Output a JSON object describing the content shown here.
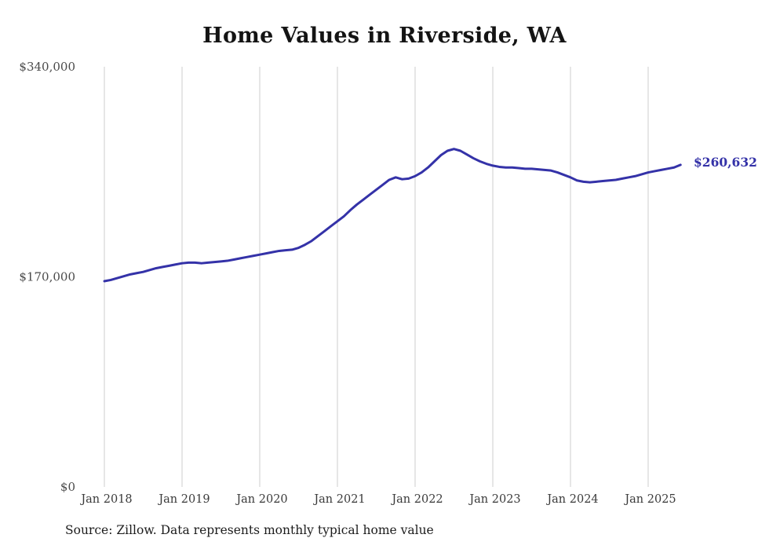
{
  "chart_data": {
    "type": "line",
    "title": "Home Values in Riverside, WA",
    "series_name": "Monthly typical home value",
    "unit": "USD",
    "x_start": "2018-01",
    "x_end": "2025-06",
    "x_tick_labels": [
      "Jan 2018",
      "Jan 2019",
      "Jan 2020",
      "Jan 2021",
      "Jan 2022",
      "Jan 2023",
      "Jan 2024",
      "Jan 2025"
    ],
    "y_tick_labels": [
      "$0",
      "$170,000",
      "$340,000"
    ],
    "y_ticks": [
      0,
      170000,
      340000
    ],
    "ylim": [
      0,
      340000
    ],
    "grid": "vertical-only",
    "legend": "none",
    "line_color": "#3432a8",
    "grid_color": "#cccccc",
    "axis_label_color": "#4a4a4a",
    "end_label": "$260,632",
    "end_value": 260632,
    "values": [
      166500,
      167500,
      169000,
      170500,
      172000,
      173000,
      174000,
      175500,
      177000,
      178000,
      179000,
      180000,
      181000,
      181500,
      181500,
      181000,
      181500,
      182000,
      182500,
      183000,
      184000,
      185000,
      186000,
      187000,
      188000,
      189000,
      190000,
      191000,
      191500,
      192000,
      193500,
      196000,
      199000,
      203000,
      207000,
      211000,
      215000,
      219000,
      224000,
      228500,
      232500,
      236500,
      240500,
      244500,
      248500,
      250500,
      249000,
      249500,
      251500,
      254500,
      258500,
      263500,
      268500,
      272000,
      273500,
      272000,
      269000,
      266000,
      263500,
      261500,
      260000,
      259000,
      258500,
      258500,
      258000,
      257500,
      257500,
      257000,
      256500,
      256000,
      254500,
      252500,
      250500,
      248000,
      247000,
      246500,
      247000,
      247500,
      248000,
      248500,
      249500,
      250500,
      251500,
      253000,
      254500,
      255500,
      256500,
      257500,
      258500,
      260632
    ]
  },
  "source": {
    "text": "Source: Zillow. Data represents monthly typical home value"
  }
}
